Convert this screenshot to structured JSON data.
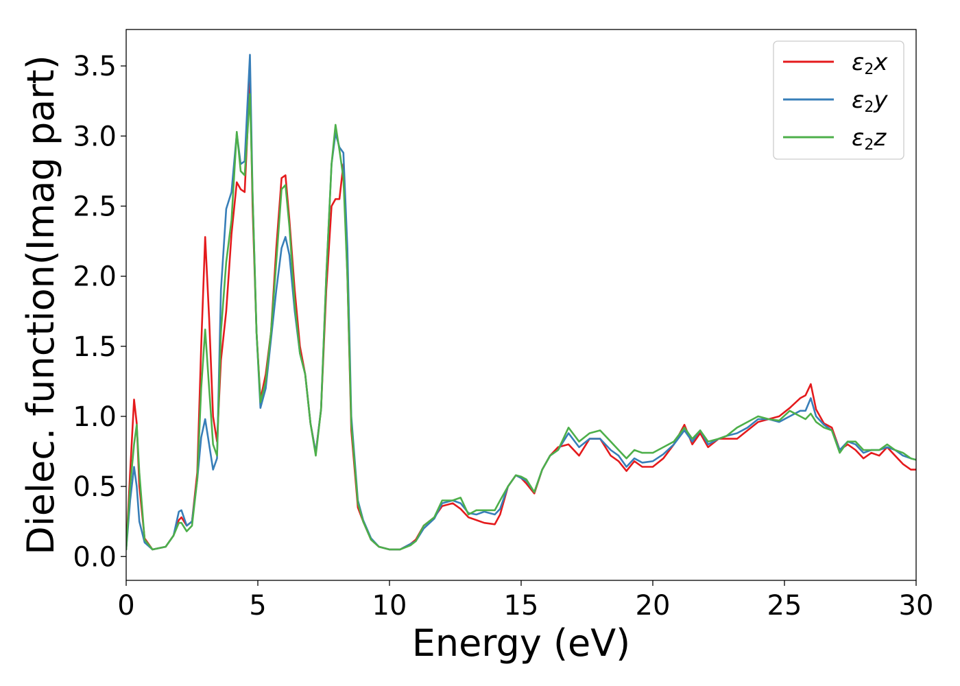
{
  "chart_data": {
    "type": "line",
    "title": "",
    "xlabel": "Energy (eV)",
    "ylabel": "Dielec. function(Imag part)",
    "xlim": [
      0,
      30
    ],
    "ylim": [
      -0.17,
      3.76
    ],
    "xticks": [
      0,
      5,
      10,
      15,
      20,
      25,
      30
    ],
    "xtick_labels": [
      "0",
      "5",
      "10",
      "15",
      "20",
      "25",
      "30"
    ],
    "yticks": [
      0.0,
      0.5,
      1.0,
      1.5,
      2.0,
      2.5,
      3.0,
      3.5
    ],
    "ytick_labels": [
      "0.0",
      "0.5",
      "1.0",
      "1.5",
      "2.0",
      "2.5",
      "3.0",
      "3.5"
    ],
    "grid": false,
    "legend_position": "top-right",
    "series": [
      {
        "name": "ε2x",
        "legend": {
          "base": "ε",
          "sub": "2",
          "tail": "x"
        },
        "color": "#e41a1c",
        "x": [
          0,
          0.15,
          0.3,
          0.4,
          0.5,
          0.7,
          1.0,
          1.5,
          1.8,
          2.0,
          2.1,
          2.3,
          2.5,
          2.7,
          2.85,
          3.0,
          3.15,
          3.3,
          3.45,
          3.6,
          3.8,
          4.0,
          4.2,
          4.35,
          4.5,
          4.6,
          4.7,
          4.8,
          4.95,
          5.1,
          5.3,
          5.5,
          5.7,
          5.9,
          6.05,
          6.2,
          6.4,
          6.6,
          6.8,
          7.0,
          7.2,
          7.4,
          7.6,
          7.8,
          7.95,
          8.1,
          8.25,
          8.4,
          8.55,
          8.8,
          9.0,
          9.3,
          9.6,
          10.0,
          10.4,
          10.8,
          11.0,
          11.3,
          11.7,
          12.0,
          12.4,
          12.7,
          13.0,
          13.3,
          13.6,
          14.0,
          14.2,
          14.5,
          14.8,
          15.0,
          15.2,
          15.5,
          15.8,
          16.1,
          16.4,
          16.8,
          17.2,
          17.6,
          18.0,
          18.4,
          18.7,
          19.0,
          19.3,
          19.6,
          20.0,
          20.4,
          20.8,
          21.2,
          21.5,
          21.8,
          22.1,
          22.5,
          22.8,
          23.2,
          23.6,
          24.0,
          24.4,
          24.8,
          25.2,
          25.6,
          25.8,
          26.0,
          26.2,
          26.5,
          26.8,
          27.1,
          27.4,
          27.7,
          28.0,
          28.3,
          28.6,
          28.9,
          29.2,
          29.5,
          29.8,
          30.0
        ],
        "y": [
          0.05,
          0.6,
          1.12,
          0.95,
          0.5,
          0.13,
          0.05,
          0.07,
          0.15,
          0.26,
          0.28,
          0.22,
          0.25,
          0.6,
          1.5,
          2.28,
          1.7,
          1.0,
          0.82,
          1.4,
          1.75,
          2.3,
          2.67,
          2.62,
          2.6,
          3.0,
          3.48,
          2.5,
          1.6,
          1.12,
          1.3,
          1.6,
          2.2,
          2.7,
          2.72,
          2.4,
          1.9,
          1.5,
          1.3,
          0.95,
          0.74,
          1.05,
          1.9,
          2.5,
          2.55,
          2.55,
          2.8,
          2.0,
          0.9,
          0.35,
          0.25,
          0.12,
          0.07,
          0.05,
          0.05,
          0.09,
          0.12,
          0.22,
          0.28,
          0.36,
          0.38,
          0.34,
          0.28,
          0.26,
          0.24,
          0.23,
          0.3,
          0.5,
          0.58,
          0.56,
          0.52,
          0.45,
          0.62,
          0.72,
          0.78,
          0.8,
          0.72,
          0.84,
          0.84,
          0.72,
          0.68,
          0.61,
          0.68,
          0.64,
          0.64,
          0.7,
          0.8,
          0.94,
          0.8,
          0.88,
          0.78,
          0.84,
          0.84,
          0.84,
          0.9,
          0.96,
          0.98,
          1.0,
          1.06,
          1.13,
          1.15,
          1.23,
          1.05,
          0.95,
          0.92,
          0.76,
          0.8,
          0.76,
          0.7,
          0.74,
          0.72,
          0.78,
          0.72,
          0.66,
          0.62,
          0.62
        ]
      },
      {
        "name": "ε2y",
        "legend": {
          "base": "ε",
          "sub": "2",
          "tail": "y"
        },
        "color": "#377eb8",
        "x": [
          0,
          0.15,
          0.3,
          0.4,
          0.5,
          0.7,
          1.0,
          1.5,
          1.8,
          2.0,
          2.1,
          2.3,
          2.5,
          2.7,
          2.85,
          3.0,
          3.15,
          3.3,
          3.45,
          3.6,
          3.8,
          4.0,
          4.2,
          4.35,
          4.5,
          4.6,
          4.7,
          4.8,
          4.95,
          5.1,
          5.3,
          5.5,
          5.7,
          5.9,
          6.05,
          6.2,
          6.4,
          6.6,
          6.8,
          7.0,
          7.2,
          7.4,
          7.6,
          7.8,
          7.95,
          8.1,
          8.25,
          8.4,
          8.55,
          8.8,
          9.0,
          9.3,
          9.6,
          10.0,
          10.4,
          10.8,
          11.0,
          11.3,
          11.7,
          12.0,
          12.4,
          12.7,
          13.0,
          13.3,
          13.6,
          14.0,
          14.2,
          14.5,
          14.8,
          15.0,
          15.2,
          15.5,
          15.8,
          16.1,
          16.4,
          16.8,
          17.2,
          17.6,
          18.0,
          18.4,
          18.7,
          19.0,
          19.3,
          19.6,
          20.0,
          20.4,
          20.8,
          21.2,
          21.5,
          21.8,
          22.1,
          22.5,
          22.8,
          23.2,
          23.6,
          24.0,
          24.4,
          24.8,
          25.2,
          25.6,
          25.8,
          26.0,
          26.2,
          26.5,
          26.8,
          27.1,
          27.4,
          27.7,
          28.0,
          28.3,
          28.6,
          28.9,
          29.2,
          29.5,
          29.8,
          30.0
        ],
        "y": [
          0.05,
          0.4,
          0.64,
          0.5,
          0.25,
          0.1,
          0.05,
          0.07,
          0.15,
          0.32,
          0.33,
          0.22,
          0.25,
          0.55,
          0.85,
          0.98,
          0.8,
          0.62,
          0.7,
          1.9,
          2.48,
          2.6,
          3.02,
          2.8,
          2.82,
          3.2,
          3.58,
          2.6,
          1.6,
          1.06,
          1.2,
          1.55,
          1.9,
          2.2,
          2.28,
          2.15,
          1.75,
          1.45,
          1.3,
          0.95,
          0.74,
          1.05,
          2.0,
          2.8,
          3.02,
          2.92,
          2.88,
          2.2,
          1.0,
          0.4,
          0.26,
          0.13,
          0.07,
          0.05,
          0.05,
          0.09,
          0.11,
          0.2,
          0.27,
          0.38,
          0.4,
          0.38,
          0.31,
          0.3,
          0.32,
          0.3,
          0.34,
          0.5,
          0.58,
          0.56,
          0.54,
          0.46,
          0.62,
          0.72,
          0.76,
          0.88,
          0.78,
          0.84,
          0.84,
          0.76,
          0.72,
          0.64,
          0.7,
          0.67,
          0.68,
          0.73,
          0.8,
          0.9,
          0.82,
          0.9,
          0.8,
          0.84,
          0.86,
          0.88,
          0.92,
          0.98,
          0.98,
          0.96,
          1.0,
          1.04,
          1.04,
          1.13,
          1.0,
          0.94,
          0.9,
          0.76,
          0.82,
          0.8,
          0.74,
          0.76,
          0.76,
          0.78,
          0.76,
          0.72,
          0.7,
          0.69
        ]
      },
      {
        "name": "ε2z",
        "legend": {
          "base": "ε",
          "sub": "2",
          "tail": "z"
        },
        "color": "#4daf4a",
        "x": [
          0,
          0.15,
          0.3,
          0.4,
          0.5,
          0.7,
          1.0,
          1.5,
          1.8,
          2.0,
          2.1,
          2.3,
          2.5,
          2.7,
          2.85,
          3.0,
          3.15,
          3.3,
          3.45,
          3.6,
          3.8,
          4.0,
          4.2,
          4.35,
          4.5,
          4.6,
          4.7,
          4.8,
          4.95,
          5.1,
          5.3,
          5.5,
          5.7,
          5.9,
          6.05,
          6.2,
          6.4,
          6.6,
          6.8,
          7.0,
          7.2,
          7.4,
          7.6,
          7.8,
          7.95,
          8.1,
          8.25,
          8.4,
          8.55,
          8.8,
          9.0,
          9.3,
          9.6,
          10.0,
          10.4,
          10.8,
          11.0,
          11.3,
          11.7,
          12.0,
          12.4,
          12.7,
          13.0,
          13.3,
          13.6,
          14.0,
          14.2,
          14.5,
          14.8,
          15.0,
          15.2,
          15.5,
          15.8,
          16.1,
          16.4,
          16.8,
          17.2,
          17.6,
          18.0,
          18.4,
          18.7,
          19.0,
          19.3,
          19.6,
          20.0,
          20.4,
          20.8,
          21.2,
          21.5,
          21.8,
          22.1,
          22.5,
          22.8,
          23.2,
          23.6,
          24.0,
          24.4,
          24.8,
          25.2,
          25.6,
          25.8,
          26.0,
          26.2,
          26.5,
          26.8,
          27.1,
          27.4,
          27.7,
          28.0,
          28.3,
          28.6,
          28.9,
          29.2,
          29.5,
          29.8,
          30.0
        ],
        "y": [
          0.05,
          0.5,
          0.8,
          0.94,
          0.6,
          0.12,
          0.05,
          0.07,
          0.15,
          0.24,
          0.24,
          0.18,
          0.22,
          0.55,
          1.2,
          1.62,
          1.2,
          0.8,
          0.72,
          1.6,
          2.1,
          2.4,
          3.03,
          2.75,
          2.72,
          3.0,
          3.3,
          2.6,
          1.6,
          1.1,
          1.25,
          1.6,
          2.1,
          2.62,
          2.65,
          2.35,
          1.8,
          1.45,
          1.3,
          0.95,
          0.72,
          1.05,
          2.0,
          2.8,
          3.08,
          2.9,
          2.7,
          2.0,
          0.95,
          0.38,
          0.25,
          0.12,
          0.07,
          0.05,
          0.05,
          0.08,
          0.11,
          0.22,
          0.28,
          0.4,
          0.4,
          0.42,
          0.3,
          0.33,
          0.33,
          0.33,
          0.4,
          0.5,
          0.58,
          0.57,
          0.55,
          0.46,
          0.62,
          0.72,
          0.76,
          0.92,
          0.82,
          0.88,
          0.9,
          0.82,
          0.76,
          0.7,
          0.76,
          0.74,
          0.74,
          0.78,
          0.82,
          0.92,
          0.84,
          0.9,
          0.82,
          0.84,
          0.86,
          0.92,
          0.96,
          1.0,
          0.98,
          0.97,
          1.04,
          1.0,
          0.98,
          1.02,
          0.96,
          0.92,
          0.9,
          0.74,
          0.82,
          0.82,
          0.76,
          0.76,
          0.76,
          0.8,
          0.76,
          0.74,
          0.7,
          0.69
        ]
      }
    ]
  }
}
